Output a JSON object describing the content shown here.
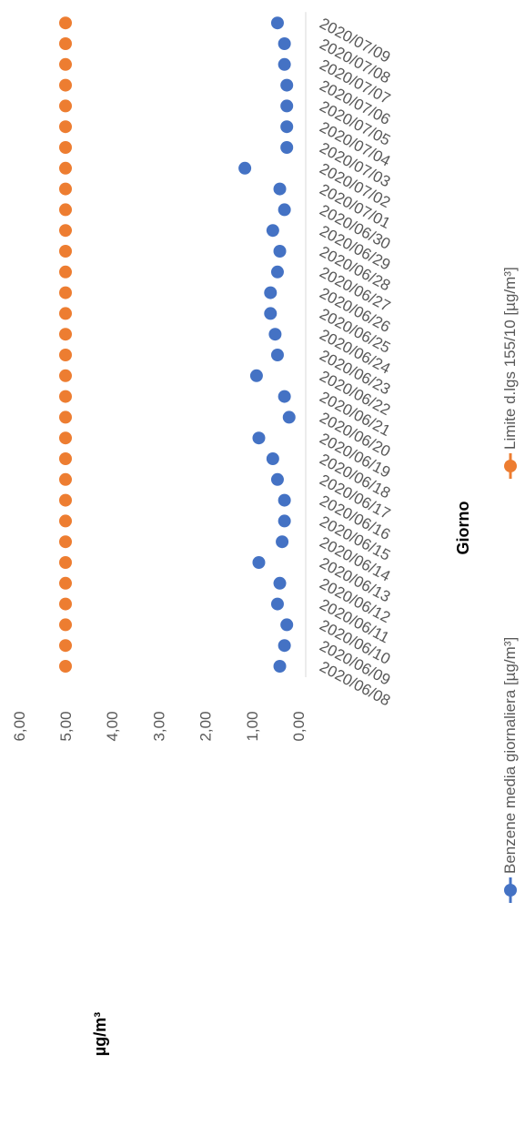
{
  "chart_data": {
    "type": "scatter",
    "orientation": "rotated-90",
    "xlabel": "Giorno",
    "ylabel": "µg/m³",
    "ylim": [
      0,
      6
    ],
    "y_ticks": [
      "0,00",
      "1,00",
      "2,00",
      "3,00",
      "4,00",
      "5,00",
      "6,00"
    ],
    "grid": false,
    "legend_position": "bottom",
    "categories": [
      "2020/06/08",
      "2020/06/09",
      "2020/06/10",
      "2020/06/11",
      "2020/06/12",
      "2020/06/13",
      "2020/06/14",
      "2020/06/15",
      "2020/06/16",
      "2020/06/17",
      "2020/06/18",
      "2020/06/19",
      "2020/06/20",
      "2020/06/21",
      "2020/06/22",
      "2020/06/23",
      "2020/06/24",
      "2020/06/25",
      "2020/06/26",
      "2020/06/27",
      "2020/06/28",
      "2020/06/29",
      "2020/06/30",
      "2020/07/01",
      "2020/07/02",
      "2020/07/03",
      "2020/07/04",
      "2020/07/05",
      "2020/07/06",
      "2020/07/07",
      "2020/07/08",
      "2020/07/09"
    ],
    "series": [
      {
        "name": "Benzene media giornaliera [µg/m³]",
        "color": "#4472C4",
        "values": [
          0.4,
          0.3,
          0.25,
          0.45,
          0.4,
          0.85,
          0.35,
          0.3,
          0.3,
          0.45,
          0.55,
          0.85,
          0.2,
          0.3,
          0.9,
          0.45,
          0.5,
          0.6,
          0.6,
          0.45,
          0.4,
          0.55,
          0.3,
          0.4,
          1.15,
          0.25,
          0.25,
          0.25,
          0.25,
          0.3,
          0.3,
          0.45
        ]
      },
      {
        "name": "Limite d.lgs 155/10 [µg/m³]",
        "color": "#ED7D31",
        "values": [
          5,
          5,
          5,
          5,
          5,
          5,
          5,
          5,
          5,
          5,
          5,
          5,
          5,
          5,
          5,
          5,
          5,
          5,
          5,
          5,
          5,
          5,
          5,
          5,
          5,
          5,
          5,
          5,
          5,
          5,
          5,
          5
        ]
      }
    ]
  }
}
